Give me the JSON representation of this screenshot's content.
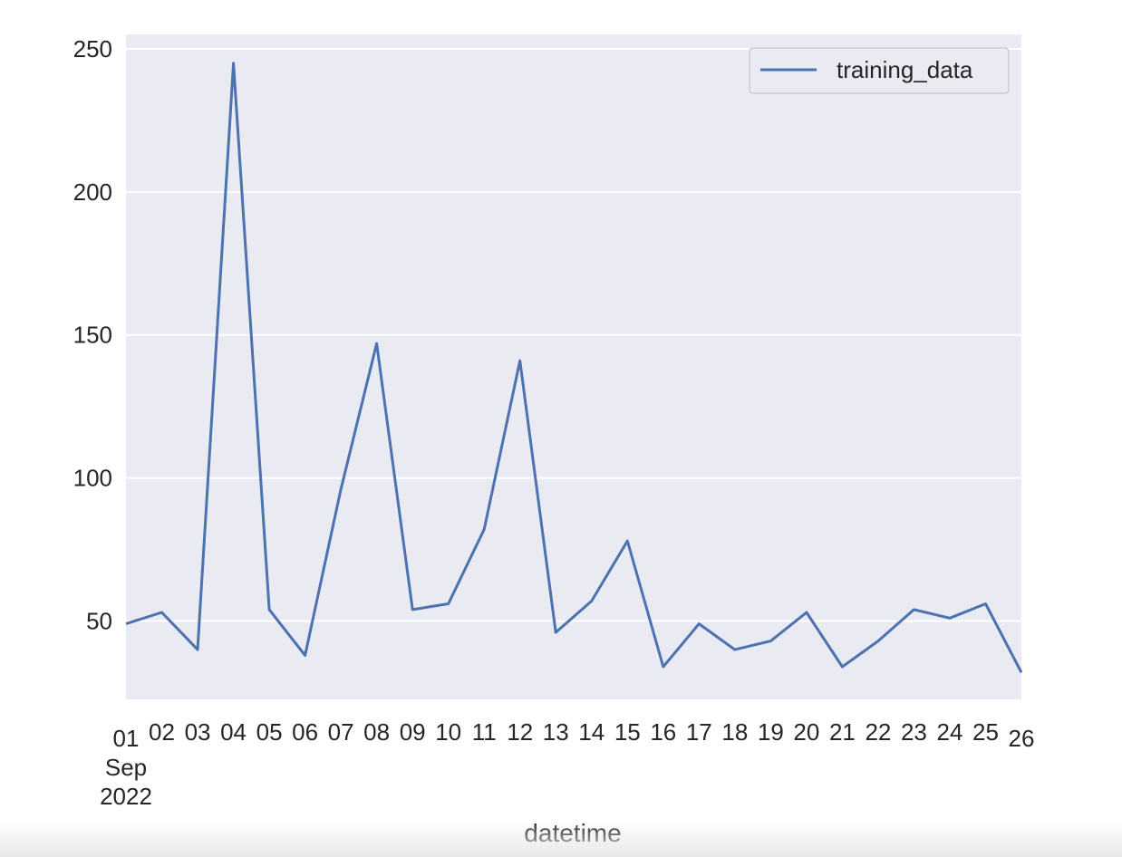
{
  "chart_data": {
    "type": "line",
    "x": [
      "2022-09-01",
      "2022-09-02",
      "2022-09-03",
      "2022-09-04",
      "2022-09-05",
      "2022-09-06",
      "2022-09-07",
      "2022-09-08",
      "2022-09-09",
      "2022-09-10",
      "2022-09-11",
      "2022-09-12",
      "2022-09-13",
      "2022-09-14",
      "2022-09-15",
      "2022-09-16",
      "2022-09-17",
      "2022-09-18",
      "2022-09-19",
      "2022-09-20",
      "2022-09-21",
      "2022-09-22",
      "2022-09-23",
      "2022-09-24",
      "2022-09-25",
      "2022-09-26"
    ],
    "series": [
      {
        "name": "training_data",
        "color": "#4c72b0",
        "values": [
          49,
          53,
          40,
          245,
          54,
          38,
          96,
          147,
          54,
          56,
          82,
          141,
          46,
          57,
          78,
          34,
          49,
          40,
          43,
          53,
          34,
          43,
          54,
          51,
          56,
          32
        ]
      }
    ],
    "xlabel": "datetime",
    "ylabel": "",
    "title": "",
    "ylim": [
      22.6,
      250
    ],
    "yticks": [
      50,
      100,
      150,
      200,
      250
    ],
    "xticks": [
      "01",
      "02",
      "03",
      "04",
      "05",
      "06",
      "07",
      "08",
      "09",
      "10",
      "11",
      "12",
      "13",
      "14",
      "15",
      "16",
      "17",
      "18",
      "19",
      "20",
      "21",
      "22",
      "23",
      "24",
      "25",
      "26"
    ],
    "xtick_first_extra": [
      "Sep",
      "2022"
    ],
    "grid": true,
    "legend_position": "top-right",
    "background_color": "#eaeaf2",
    "grid_color": "#ffffff"
  }
}
